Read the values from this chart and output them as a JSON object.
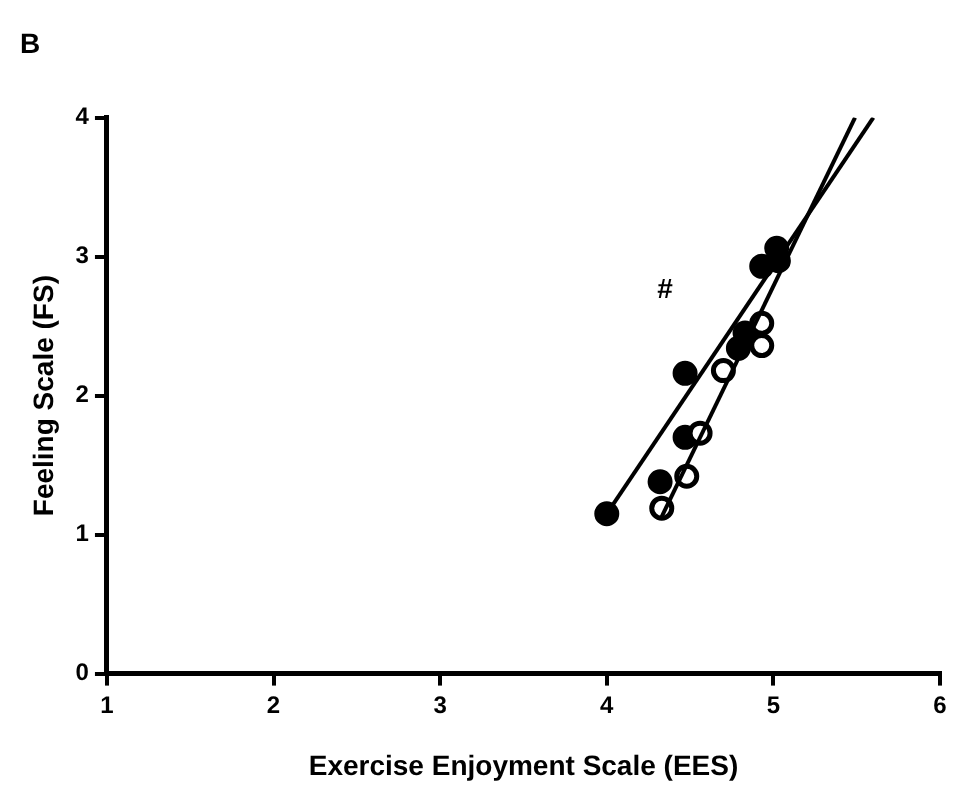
{
  "chart_data": {
    "type": "scatter",
    "title": "B",
    "xlabel": "Exercise Enjoyment Scale (EES)",
    "ylabel": "Feeling Scale (FS)",
    "xlim": [
      1,
      6
    ],
    "xticks": [
      1,
      2,
      3,
      4,
      5,
      6
    ],
    "ylim": [
      0,
      4
    ],
    "yticks": [
      0,
      1,
      2,
      3,
      4
    ],
    "grid": false,
    "legend": false,
    "marker": "circle",
    "annotations": [
      "#"
    ],
    "series": [
      {
        "color": "#000000",
        "x": [
          4.0,
          4.32,
          4.47,
          4.47,
          4.79,
          4.83,
          4.93,
          5.02,
          5.03
        ],
        "values": [
          1.15,
          1.38,
          2.16,
          1.7,
          2.34,
          2.45,
          2.93,
          3.06,
          2.97
        ]
      },
      {
        "color": "#000000",
        "marker": "open_circle",
        "x": [
          4.33,
          4.48,
          4.56,
          4.7,
          4.93,
          4.93
        ],
        "values": [
          1.19,
          1.42,
          1.73,
          2.18,
          2.52,
          2.36
        ]
      },
      {
        "type": "line",
        "color": "#000000",
        "marker": "none",
        "x": [
          4.0,
          5.6
        ],
        "values": [
          1.15,
          4.0
        ]
      },
      {
        "type": "line",
        "color": "#000000",
        "marker": "none",
        "x": [
          4.33,
          5.49
        ],
        "values": [
          1.13,
          4.0
        ]
      }
    ]
  }
}
